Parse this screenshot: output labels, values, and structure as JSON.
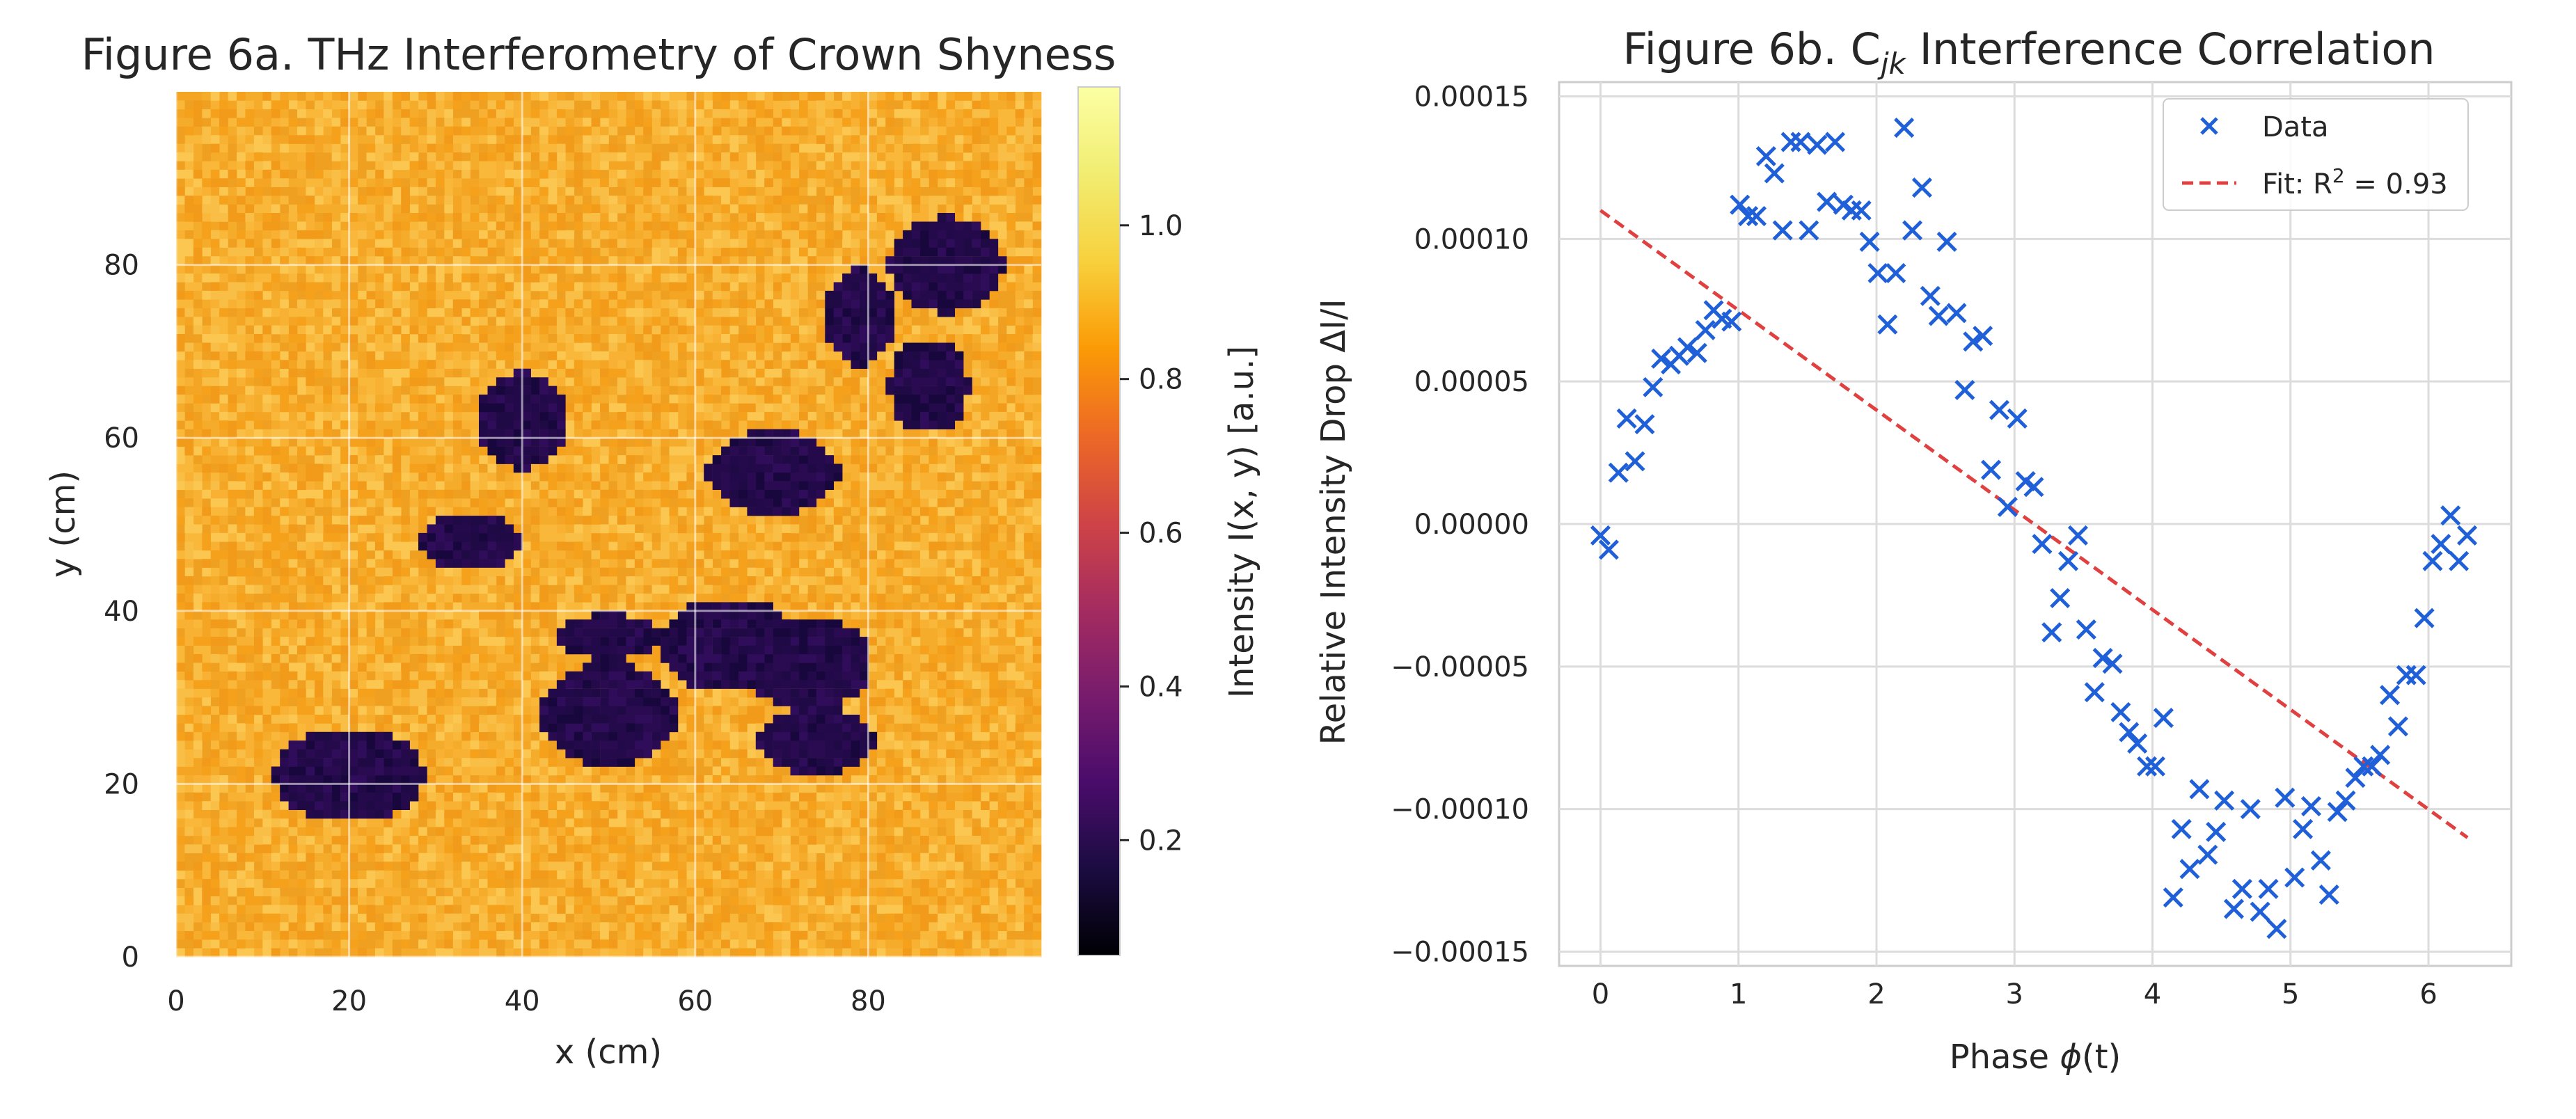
{
  "chart_data": [
    {
      "type": "heatmap",
      "title": "Figure 6a. THz Interferometry of Crown Shyness",
      "xlabel": "x (cm)",
      "ylabel": "y (cm)",
      "xlim": [
        0,
        99
      ],
      "ylim": [
        0,
        99
      ],
      "xticks": [
        0,
        20,
        40,
        60,
        80
      ],
      "yticks": [
        0,
        20,
        40,
        60,
        80
      ],
      "grid": true,
      "background_intensity": 1.0,
      "colorbar": {
        "label": "Intensity I(x, y) [a.u.]",
        "range": [
          0.05,
          1.18
        ],
        "ticks": [
          0.2,
          0.4,
          0.6,
          0.8,
          1.0
        ],
        "colormap": "inferno"
      },
      "gaps": [
        {
          "cx": 20,
          "cy": 21,
          "rx": 8.6,
          "ry": 5.4,
          "intensity": 0.1
        },
        {
          "cx": 34,
          "cy": 48,
          "rx": 5.8,
          "ry": 3.4,
          "intensity": 0.1
        },
        {
          "cx": 40,
          "cy": 62,
          "rx": 5.4,
          "ry": 5.6,
          "intensity": 0.1
        },
        {
          "cx": 50,
          "cy": 37,
          "rx": 5.8,
          "ry": 2.6,
          "intensity": 0.1
        },
        {
          "cx": 50,
          "cy": 28,
          "rx": 8.0,
          "ry": 5.8,
          "intensity": 0.1
        },
        {
          "cx": 64,
          "cy": 36,
          "rx": 8.4,
          "ry": 5.4,
          "intensity": 0.1
        },
        {
          "cx": 73,
          "cy": 34,
          "rx": 7.4,
          "ry": 5.4,
          "intensity": 0.1
        },
        {
          "cx": 74,
          "cy": 25,
          "rx": 7.0,
          "ry": 3.8,
          "intensity": 0.1
        },
        {
          "cx": 69,
          "cy": 56,
          "rx": 7.6,
          "ry": 4.8,
          "intensity": 0.1
        },
        {
          "cx": 79,
          "cy": 74,
          "rx": 4.2,
          "ry": 5.6,
          "intensity": 0.1
        },
        {
          "cx": 89,
          "cy": 80,
          "rx": 6.6,
          "ry": 5.6,
          "intensity": 0.1
        },
        {
          "cx": 87,
          "cy": 66,
          "rx": 4.6,
          "ry": 5.4,
          "intensity": 0.1
        }
      ]
    },
    {
      "type": "scatter",
      "title": "Figure 6b. C",
      "title_subscript": "jk",
      "title_suffix": " Interference Correlation",
      "xlabel_prefix": "Phase ",
      "xlabel_symbol": "ϕ",
      "xlabel_suffix": "(t)",
      "ylabel": "Relative Intensity Drop ΔI/I",
      "xlim": [
        -0.3,
        6.6
      ],
      "ylim": [
        -0.000155,
        0.000155
      ],
      "xticks": [
        0,
        1,
        2,
        3,
        4,
        5,
        6
      ],
      "yticks": [
        -0.00015,
        -0.0001,
        -5e-05,
        0.0,
        5e-05,
        0.0001,
        0.00015
      ],
      "ytick_labels": [
        "−0.00015",
        "−0.00010",
        "−0.00005",
        "0.00000",
        "0.00005",
        "0.00010",
        "0.00015"
      ],
      "xtick_labels": [
        "0",
        "1",
        "2",
        "3",
        "4",
        "5",
        "6"
      ],
      "grid": true,
      "legend": {
        "position": "top-right",
        "data_label": "Data",
        "fit_label_prefix": "Fit: R",
        "fit_label_sup": "2",
        "fit_label_suffix": " = 0.93"
      },
      "marker_color": "#1f5fd8",
      "fit_color": "#e04040",
      "fit_line": {
        "x": [
          0,
          6.283
        ],
        "y": [
          0.00011,
          -0.00011
        ]
      },
      "series": [
        {
          "name": "Data",
          "points": [
            [
              0.0,
              -4e-06
            ],
            [
              0.06,
              -9e-06
            ],
            [
              0.13,
              1.8e-05
            ],
            [
              0.19,
              3.7e-05
            ],
            [
              0.25,
              2.2e-05
            ],
            [
              0.32,
              3.5e-05
            ],
            [
              0.38,
              4.8e-05
            ],
            [
              0.44,
              5.8e-05
            ],
            [
              0.51,
              5.6e-05
            ],
            [
              0.57,
              5.9e-05
            ],
            [
              0.63,
              6.2e-05
            ],
            [
              0.7,
              6e-05
            ],
            [
              0.76,
              6.8e-05
            ],
            [
              0.82,
              7.5e-05
            ],
            [
              0.88,
              7.2e-05
            ],
            [
              0.95,
              7.1e-05
            ],
            [
              1.01,
              0.000112
            ],
            [
              1.07,
              0.000108
            ],
            [
              1.13,
              0.000108
            ],
            [
              1.2,
              0.000129
            ],
            [
              1.26,
              0.000123
            ],
            [
              1.32,
              0.000103
            ],
            [
              1.38,
              0.000134
            ],
            [
              1.45,
              0.000134
            ],
            [
              1.51,
              0.000103
            ],
            [
              1.57,
              0.000133
            ],
            [
              1.64,
              0.000113
            ],
            [
              1.7,
              0.000134
            ],
            [
              1.76,
              0.000112
            ],
            [
              1.82,
              0.00011
            ],
            [
              1.89,
              0.00011
            ],
            [
              1.95,
              9.9e-05
            ],
            [
              2.01,
              8.8e-05
            ],
            [
              2.08,
              7e-05
            ],
            [
              2.14,
              8.8e-05
            ],
            [
              2.2,
              0.000139
            ],
            [
              2.26,
              0.000103
            ],
            [
              2.33,
              0.000118
            ],
            [
              2.39,
              8e-05
            ],
            [
              2.45,
              7.3e-05
            ],
            [
              2.51,
              9.9e-05
            ],
            [
              2.58,
              7.4e-05
            ],
            [
              2.64,
              4.7e-05
            ],
            [
              2.7,
              6.4e-05
            ],
            [
              2.77,
              6.6e-05
            ],
            [
              2.83,
              1.9e-05
            ],
            [
              2.89,
              4e-05
            ],
            [
              2.95,
              6e-06
            ],
            [
              3.02,
              3.7e-05
            ],
            [
              3.08,
              1.5e-05
            ],
            [
              3.14,
              1.3e-05
            ],
            [
              3.2,
              -7e-06
            ],
            [
              3.27,
              -3.8e-05
            ],
            [
              3.33,
              -2.6e-05
            ],
            [
              3.39,
              -1.3e-05
            ],
            [
              3.46,
              -4e-06
            ],
            [
              3.52,
              -3.7e-05
            ],
            [
              3.58,
              -5.9e-05
            ],
            [
              3.64,
              -4.7e-05
            ],
            [
              3.71,
              -4.9e-05
            ],
            [
              3.77,
              -6.6e-05
            ],
            [
              3.83,
              -7.3e-05
            ],
            [
              3.89,
              -7.7e-05
            ],
            [
              3.96,
              -8.5e-05
            ],
            [
              4.02,
              -8.5e-05
            ],
            [
              4.08,
              -6.8e-05
            ],
            [
              4.15,
              -0.000131
            ],
            [
              4.21,
              -0.000107
            ],
            [
              4.27,
              -0.000121
            ],
            [
              4.34,
              -9.3e-05
            ],
            [
              4.4,
              -0.000116
            ],
            [
              4.46,
              -0.000108
            ],
            [
              4.52,
              -9.7e-05
            ],
            [
              4.59,
              -0.000135
            ],
            [
              4.65,
              -0.000128
            ],
            [
              4.71,
              -0.0001
            ],
            [
              4.78,
              -0.000136
            ],
            [
              4.84,
              -0.000128
            ],
            [
              4.9,
              -0.000142
            ],
            [
              4.96,
              -9.6e-05
            ],
            [
              5.03,
              -0.000124
            ],
            [
              5.09,
              -0.000107
            ],
            [
              5.15,
              -9.9e-05
            ],
            [
              5.22,
              -0.000118
            ],
            [
              5.28,
              -0.00013
            ],
            [
              5.34,
              -0.000101
            ],
            [
              5.4,
              -9.7e-05
            ],
            [
              5.47,
              -8.9e-05
            ],
            [
              5.53,
              -8.5e-05
            ],
            [
              5.59,
              -8.5e-05
            ],
            [
              5.65,
              -8.1e-05
            ],
            [
              5.72,
              -6e-05
            ],
            [
              5.78,
              -7.1e-05
            ],
            [
              5.84,
              -5.3e-05
            ],
            [
              5.91,
              -5.3e-05
            ],
            [
              5.97,
              -3.3e-05
            ],
            [
              6.03,
              -1.3e-05
            ],
            [
              6.09,
              -7e-06
            ],
            [
              6.16,
              3e-06
            ],
            [
              6.22,
              -1.3e-05
            ],
            [
              6.28,
              -4e-06
            ]
          ]
        }
      ]
    }
  ]
}
